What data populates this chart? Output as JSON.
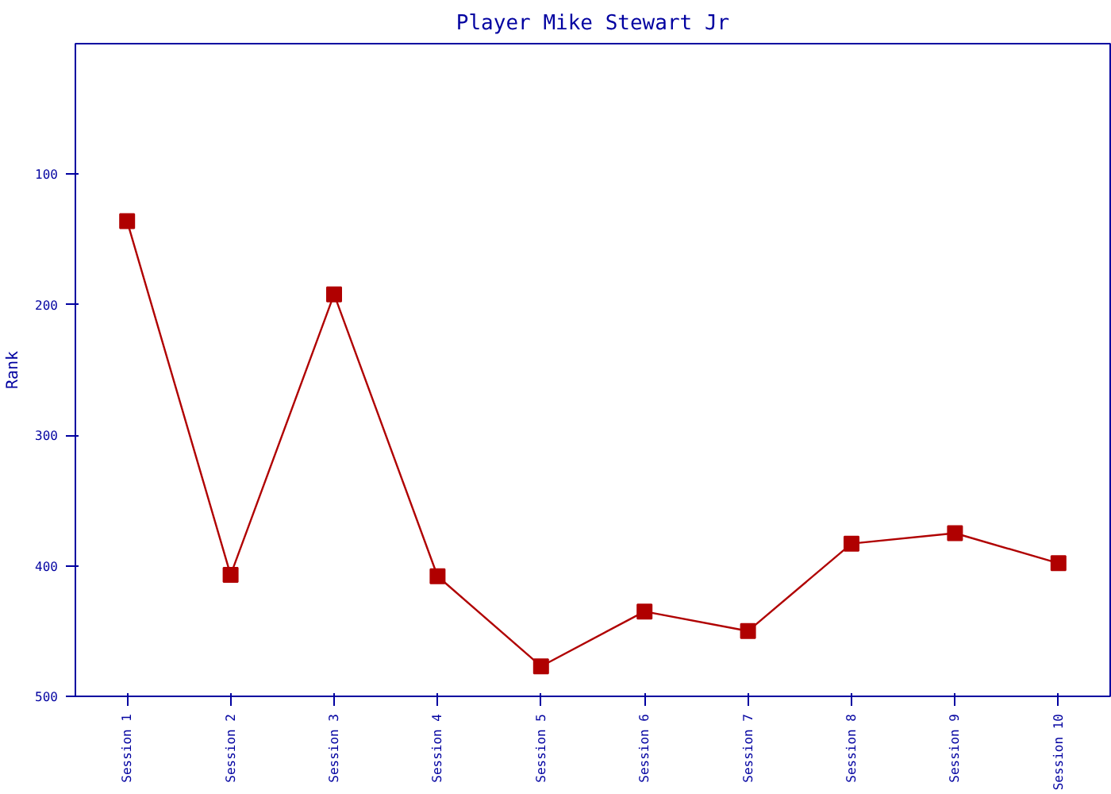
{
  "chart_data": {
    "type": "line",
    "title": "Player Mike Stewart Jr",
    "ylabel": "Rank",
    "categories": [
      "Session 1",
      "Session 2",
      "Session 3",
      "Session 4",
      "Session 5",
      "Session 6",
      "Session 7",
      "Session 8",
      "Session 9",
      "Session 10"
    ],
    "series": [
      {
        "color": "#b00000",
        "values": [
          136,
          407,
          192,
          408,
          477,
          435,
          450,
          383,
          375,
          398
        ]
      }
    ],
    "ylim": [
      500,
      0
    ],
    "yticks": [
      100,
      200,
      300,
      400,
      500
    ],
    "grid": false,
    "marker": "square",
    "line_style": "solid"
  }
}
